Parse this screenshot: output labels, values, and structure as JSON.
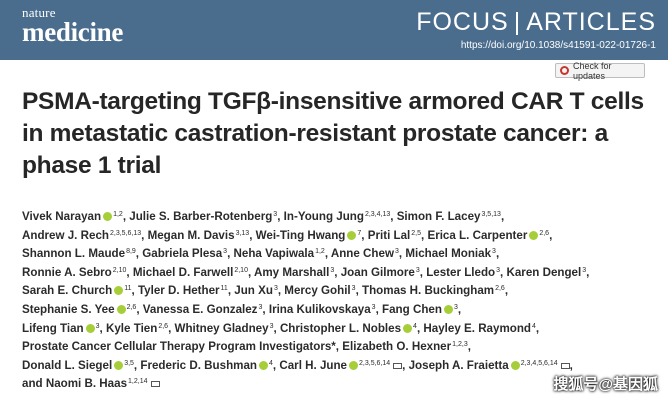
{
  "header": {
    "logo_top": "nature",
    "logo_main": "medicine",
    "section_focus": "FOCUS",
    "section_separator": "|",
    "section_articles": "ARTICLES",
    "doi": "https://doi.org/10.1038/s41591-022-01726-1",
    "check_updates": "Check for updates",
    "colors": {
      "banner": "#4b6d8d",
      "orcid": "#a6ce39"
    }
  },
  "article": {
    "title": "PSMA-targeting TGFβ-insensitive armored CAR T cells in metastatic castration-resistant prostate cancer: a phase 1 trial"
  },
  "authors": [
    [
      {
        "name": "Vivek Narayan",
        "orcid": true,
        "sup": "1,2"
      },
      {
        "name": "Julie S. Barber-Rotenberg",
        "sup": "3"
      },
      {
        "name": "In-Young Jung",
        "sup": "2,3,4,13"
      },
      {
        "name": "Simon F. Lacey",
        "sup": "3,5,13"
      }
    ],
    [
      {
        "name": "Andrew J. Rech",
        "sup": "2,3,5,6,13"
      },
      {
        "name": "Megan M. Davis",
        "sup": "3,13"
      },
      {
        "name": "Wei-Ting Hwang",
        "orcid": true,
        "sup": "7"
      },
      {
        "name": "Priti Lal",
        "sup": "2,5"
      },
      {
        "name": "Erica L. Carpenter",
        "orcid": true,
        "sup": "2,6"
      }
    ],
    [
      {
        "name": "Shannon L. Maude",
        "sup": "8,9"
      },
      {
        "name": "Gabriela Plesa",
        "sup": "3"
      },
      {
        "name": "Neha Vapiwala",
        "sup": "1,2"
      },
      {
        "name": "Anne Chew",
        "sup": "3"
      },
      {
        "name": "Michael Moniak",
        "sup": "3"
      }
    ],
    [
      {
        "name": "Ronnie A. Sebro",
        "sup": "2,10"
      },
      {
        "name": "Michael D. Farwell",
        "sup": "2,10"
      },
      {
        "name": "Amy Marshall",
        "sup": "3"
      },
      {
        "name": "Joan Gilmore",
        "sup": "3"
      },
      {
        "name": "Lester Lledo",
        "sup": "3"
      },
      {
        "name": "Karen Dengel",
        "sup": "3"
      }
    ],
    [
      {
        "name": "Sarah E. Church",
        "orcid": true,
        "sup": "11"
      },
      {
        "name": "Tyler D. Hether",
        "sup": "11"
      },
      {
        "name": "Jun Xu",
        "sup": "3"
      },
      {
        "name": "Mercy Gohil",
        "sup": "3"
      },
      {
        "name": "Thomas H. Buckingham",
        "sup": "2,6"
      }
    ],
    [
      {
        "name": "Stephanie S. Yee",
        "orcid": true,
        "sup": "2,6"
      },
      {
        "name": "Vanessa E. Gonzalez",
        "sup": "3"
      },
      {
        "name": "Irina Kulikovskaya",
        "sup": "3"
      },
      {
        "name": "Fang Chen",
        "orcid": true,
        "sup": "3"
      }
    ],
    [
      {
        "name": "Lifeng Tian",
        "orcid": true,
        "sup": "3"
      },
      {
        "name": "Kyle Tien",
        "sup": "2,6"
      },
      {
        "name": "Whitney Gladney",
        "sup": "3"
      },
      {
        "name": "Christopher L. Nobles",
        "orcid": true,
        "sup": "4"
      },
      {
        "name": "Hayley E. Raymond",
        "sup": "4"
      }
    ],
    [
      {
        "name": "Prostate Cancer Cellular Therapy Program Investigators*",
        "sup": ""
      },
      {
        "name": "Elizabeth O. Hexner",
        "sup": "1,2,3"
      }
    ],
    [
      {
        "name": "Donald L. Siegel",
        "orcid": true,
        "sup": "3,5"
      },
      {
        "name": "Frederic D. Bushman",
        "orcid": true,
        "sup": "4"
      },
      {
        "name": "Carl H. June",
        "orcid": true,
        "sup": "2,3,5,6,14",
        "mail": true
      },
      {
        "name": "Joseph A. Fraietta",
        "orcid": true,
        "sup": "2,3,4,5,6,14",
        "mail": true
      }
    ],
    [
      {
        "name": "and Naomi B. Haas",
        "sup": "1,2,14",
        "mail": true
      }
    ]
  ],
  "watermark": "搜狐号@基因狐"
}
